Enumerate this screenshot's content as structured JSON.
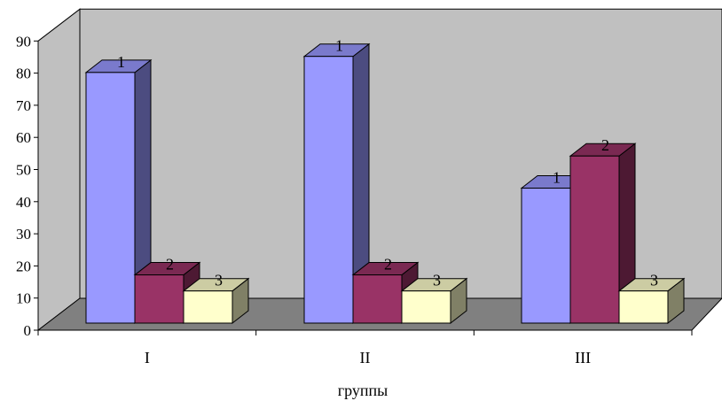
{
  "chart_data": {
    "type": "bar",
    "categories": [
      "I",
      "II",
      "III"
    ],
    "series": [
      {
        "values": [
          78,
          83,
          42
        ]
      },
      {
        "values": [
          15,
          15,
          52
        ]
      },
      {
        "values": [
          10,
          10,
          10
        ]
      }
    ],
    "data_labels": [
      "1",
      "2",
      "3"
    ],
    "xlabel": "группы",
    "ylabel": "",
    "ylim": [
      0,
      90
    ],
    "yticks": [
      0,
      10,
      20,
      30,
      40,
      50,
      60,
      70,
      80,
      90
    ],
    "style": "3d-column",
    "grid": false,
    "legend": "none",
    "colors": {
      "series_front": [
        "#9999ff",
        "#993366",
        "#ffffcc"
      ],
      "series_side": [
        "#4c4c80",
        "#4d1933",
        "#808066"
      ],
      "series_top": [
        "#7a7acc",
        "#7a2952",
        "#cccca3"
      ],
      "wall": "#c0c0c0",
      "floor": "#808080"
    }
  }
}
